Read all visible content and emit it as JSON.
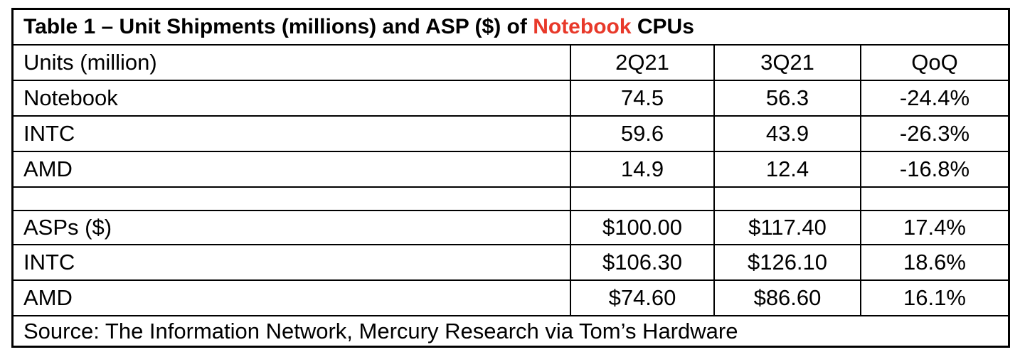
{
  "title": {
    "before": "Table 1 – Unit Shipments (millions) and ASP ($) of ",
    "highlight": "Notebook",
    "after": " CPUs",
    "highlight_color": "#e8392a"
  },
  "units_header": [
    "Units (million)",
    "2Q21",
    "3Q21",
    "QoQ"
  ],
  "units_rows": [
    [
      "Notebook",
      "74.5",
      "56.3",
      "-24.4%"
    ],
    [
      "INTC",
      "59.6",
      "43.9",
      "-26.3%"
    ],
    [
      "AMD",
      "14.9",
      "12.4",
      "-16.8%"
    ]
  ],
  "asp_rows": [
    [
      "ASPs ($)",
      "$100.00",
      "$117.40",
      "17.4%"
    ],
    [
      "INTC",
      "$106.30",
      "$126.10",
      "18.6%"
    ],
    [
      "AMD",
      "$74.60",
      "$86.60",
      "16.1%"
    ]
  ],
  "source": "Source: The Information Network, Mercury Research via Tom’s Hardware"
}
